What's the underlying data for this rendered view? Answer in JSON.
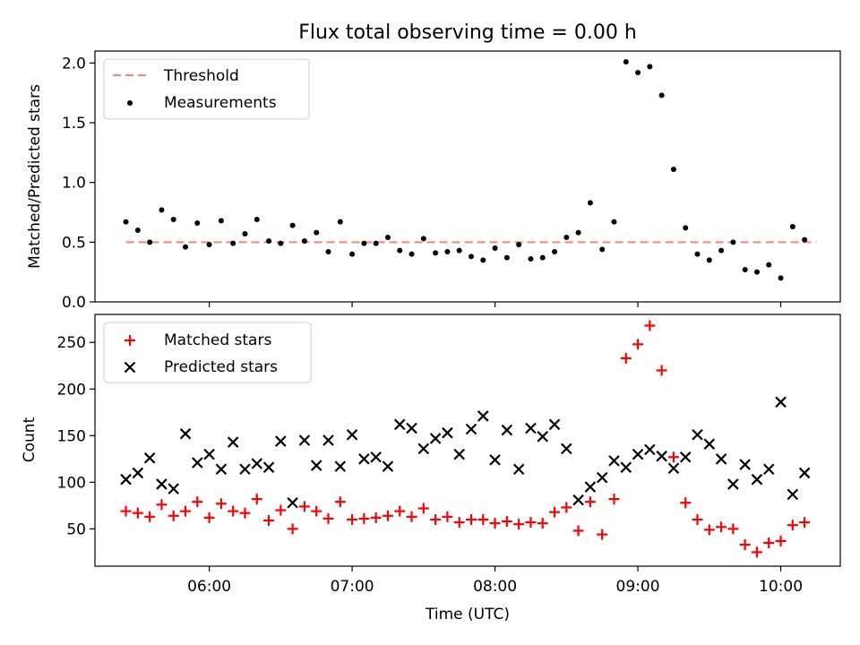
{
  "title": "Flux total observing time = 0.00 h",
  "chart_data": [
    {
      "type": "scatter",
      "ylabel": "Matched/Predicted stars",
      "ylim": [
        0.0,
        2.1
      ],
      "yticks": [
        "0.0",
        "0.5",
        "1.0",
        "1.5",
        "2.0"
      ],
      "legend": "top-left",
      "threshold": {
        "name": "Threshold",
        "value": 0.5,
        "color": "#ff7f7f",
        "x_start": "05:25",
        "x_end": "10:15"
      },
      "series": [
        {
          "name": "Measurements",
          "color": "#000000",
          "x": [
            "05:25",
            "05:30",
            "05:35",
            "05:40",
            "05:45",
            "05:50",
            "05:55",
            "06:00",
            "06:05",
            "06:10",
            "06:15",
            "06:20",
            "06:25",
            "06:30",
            "06:35",
            "06:40",
            "06:45",
            "06:50",
            "06:55",
            "07:00",
            "07:05",
            "07:10",
            "07:15",
            "07:20",
            "07:25",
            "07:30",
            "07:35",
            "07:40",
            "07:45",
            "07:50",
            "07:55",
            "08:00",
            "08:05",
            "08:10",
            "08:15",
            "08:20",
            "08:25",
            "08:30",
            "08:35",
            "08:40",
            "08:45",
            "08:50",
            "08:55",
            "09:00",
            "09:05",
            "09:10",
            "09:15",
            "09:20",
            "09:25",
            "09:30",
            "09:35",
            "09:40",
            "09:45",
            "09:50",
            "09:55",
            "10:00",
            "10:05",
            "10:10"
          ],
          "y": [
            0.67,
            0.6,
            0.5,
            0.77,
            0.69,
            0.46,
            0.66,
            0.48,
            0.68,
            0.49,
            0.57,
            0.69,
            0.51,
            0.49,
            0.64,
            0.51,
            0.58,
            0.42,
            0.67,
            0.4,
            0.49,
            0.49,
            0.54,
            0.43,
            0.4,
            0.53,
            0.41,
            0.42,
            0.43,
            0.38,
            0.35,
            0.45,
            0.37,
            0.48,
            0.36,
            0.37,
            0.42,
            0.54,
            0.58,
            0.83,
            0.44,
            0.67,
            2.01,
            1.92,
            1.97,
            1.73,
            1.11,
            0.62,
            0.4,
            0.35,
            0.43,
            0.5,
            0.27,
            0.25,
            0.31,
            0.2,
            0.63,
            0.52
          ]
        }
      ]
    },
    {
      "type": "scatter",
      "xlabel": "Time (UTC)",
      "ylabel": "Count",
      "ylim": [
        10,
        280
      ],
      "yticks": [
        "50",
        "100",
        "150",
        "200",
        "250"
      ],
      "xlim": [
        "05:12",
        "10:25"
      ],
      "xticks": [
        "06:00",
        "07:00",
        "08:00",
        "09:00",
        "10:00"
      ],
      "legend": "top-left",
      "series": [
        {
          "name": "Matched stars",
          "color": "#ff0000",
          "marker": "plus",
          "x": [
            "05:25",
            "05:30",
            "05:35",
            "05:40",
            "05:45",
            "05:50",
            "05:55",
            "06:00",
            "06:05",
            "06:10",
            "06:15",
            "06:20",
            "06:25",
            "06:30",
            "06:35",
            "06:40",
            "06:45",
            "06:50",
            "06:55",
            "07:00",
            "07:05",
            "07:10",
            "07:15",
            "07:20",
            "07:25",
            "07:30",
            "07:35",
            "07:40",
            "07:45",
            "07:50",
            "07:55",
            "08:00",
            "08:05",
            "08:10",
            "08:15",
            "08:20",
            "08:25",
            "08:30",
            "08:35",
            "08:40",
            "08:45",
            "08:50",
            "08:55",
            "09:00",
            "09:05",
            "09:10",
            "09:15",
            "09:20",
            "09:25",
            "09:30",
            "09:35",
            "09:40",
            "09:45",
            "09:50",
            "09:55",
            "10:00",
            "10:05",
            "10:10"
          ],
          "y": [
            69,
            67,
            63,
            76,
            64,
            69,
            79,
            62,
            77,
            69,
            67,
            82,
            59,
            70,
            50,
            74,
            69,
            61,
            79,
            60,
            61,
            62,
            64,
            69,
            63,
            72,
            60,
            63,
            57,
            60,
            60,
            56,
            58,
            55,
            57,
            56,
            68,
            73,
            48,
            79,
            44,
            82,
            233,
            248,
            268,
            220,
            127,
            78,
            60,
            49,
            52,
            50,
            33,
            25,
            35,
            37,
            54,
            57
          ]
        },
        {
          "name": "Predicted stars",
          "color": "#000000",
          "marker": "x",
          "x": [
            "05:25",
            "05:30",
            "05:35",
            "05:40",
            "05:45",
            "05:50",
            "05:55",
            "06:00",
            "06:05",
            "06:10",
            "06:15",
            "06:20",
            "06:25",
            "06:30",
            "06:35",
            "06:40",
            "06:45",
            "06:50",
            "06:55",
            "07:00",
            "07:05",
            "07:10",
            "07:15",
            "07:20",
            "07:25",
            "07:30",
            "07:35",
            "07:40",
            "07:45",
            "07:50",
            "07:55",
            "08:00",
            "08:05",
            "08:10",
            "08:15",
            "08:20",
            "08:25",
            "08:30",
            "08:35",
            "08:40",
            "08:45",
            "08:50",
            "08:55",
            "09:00",
            "09:05",
            "09:10",
            "09:15",
            "09:20",
            "09:25",
            "09:30",
            "09:35",
            "09:40",
            "09:45",
            "09:50",
            "09:55",
            "10:00",
            "10:05",
            "10:10"
          ],
          "y": [
            103,
            110,
            126,
            98,
            93,
            152,
            121,
            130,
            114,
            143,
            114,
            120,
            116,
            144,
            78,
            145,
            118,
            145,
            117,
            151,
            125,
            127,
            117,
            162,
            158,
            136,
            147,
            153,
            130,
            157,
            171,
            124,
            156,
            114,
            158,
            149,
            162,
            136,
            81,
            95,
            105,
            123,
            116,
            130,
            135,
            128,
            115,
            127,
            151,
            141,
            125,
            98,
            119,
            103,
            114,
            186,
            87,
            110
          ]
        }
      ]
    }
  ]
}
